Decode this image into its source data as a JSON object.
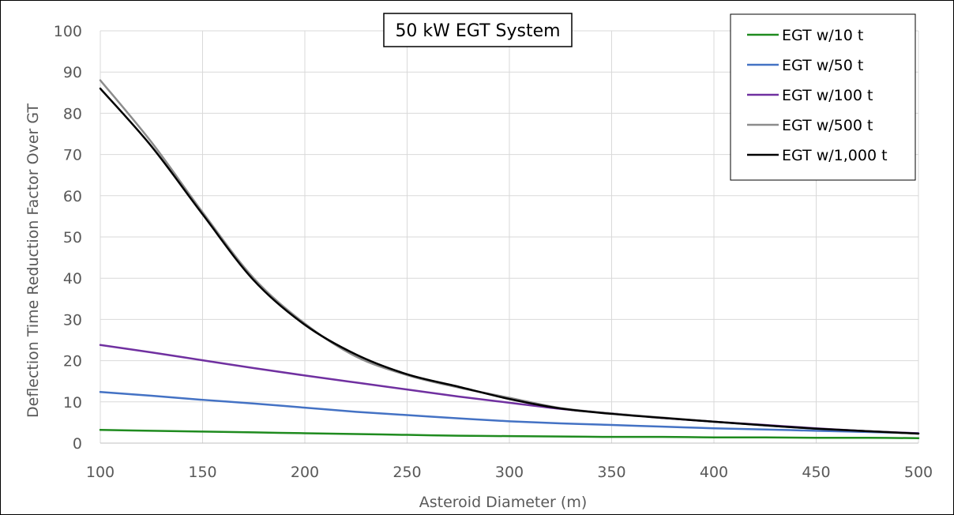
{
  "chart_data": {
    "type": "line",
    "title": "50 kW EGT System",
    "xlabel": "Asteroid Diameter (m)",
    "ylabel": "Deflection Time Reduction Factor Over GT",
    "xlim": [
      100,
      500
    ],
    "ylim": [
      0,
      100
    ],
    "xticks": [
      "100",
      "150",
      "200",
      "250",
      "300",
      "350",
      "400",
      "450",
      "500"
    ],
    "yticks": [
      "0",
      "10",
      "20",
      "30",
      "40",
      "50",
      "60",
      "70",
      "80",
      "90",
      "100"
    ],
    "grid": true,
    "legend_position": "top-right",
    "x": [
      100,
      125,
      150,
      175,
      200,
      225,
      250,
      275,
      300,
      325,
      350,
      375,
      400,
      425,
      450,
      475,
      500
    ],
    "series": [
      {
        "name": "EGT w/10 t",
        "color": "#1f8b1f",
        "values": [
          3.2,
          3.0,
          2.8,
          2.6,
          2.4,
          2.2,
          2.0,
          1.8,
          1.7,
          1.6,
          1.5,
          1.5,
          1.4,
          1.4,
          1.3,
          1.3,
          1.2
        ]
      },
      {
        "name": "EGT w/50 t",
        "color": "#4472c4",
        "values": [
          12.4,
          11.5,
          10.5,
          9.6,
          8.6,
          7.6,
          6.8,
          6.0,
          5.3,
          4.8,
          4.4,
          4.0,
          3.6,
          3.3,
          3.0,
          2.7,
          2.4
        ]
      },
      {
        "name": "EGT w/100 t",
        "color": "#7030a0",
        "values": [
          23.8,
          22.0,
          20.1,
          18.2,
          16.4,
          14.7,
          13.0,
          11.3,
          9.8,
          8.3,
          7.2,
          6.1,
          5.2,
          4.4,
          3.6,
          2.9,
          2.4
        ]
      },
      {
        "name": "EGT w/500 t",
        "color": "#8c8c8c",
        "values": [
          88.0,
          73.0,
          56.0,
          40.0,
          29.0,
          21.0,
          16.5,
          13.5,
          11.0,
          8.5,
          7.2,
          6.2,
          5.2,
          4.3,
          3.5,
          2.9,
          2.3
        ]
      },
      {
        "name": "EGT w/1,000 t",
        "color": "#000000",
        "values": [
          86.0,
          72.0,
          55.5,
          39.5,
          28.7,
          21.5,
          16.7,
          13.7,
          10.7,
          8.4,
          7.1,
          6.1,
          5.2,
          4.3,
          3.5,
          2.9,
          2.3
        ]
      }
    ]
  }
}
